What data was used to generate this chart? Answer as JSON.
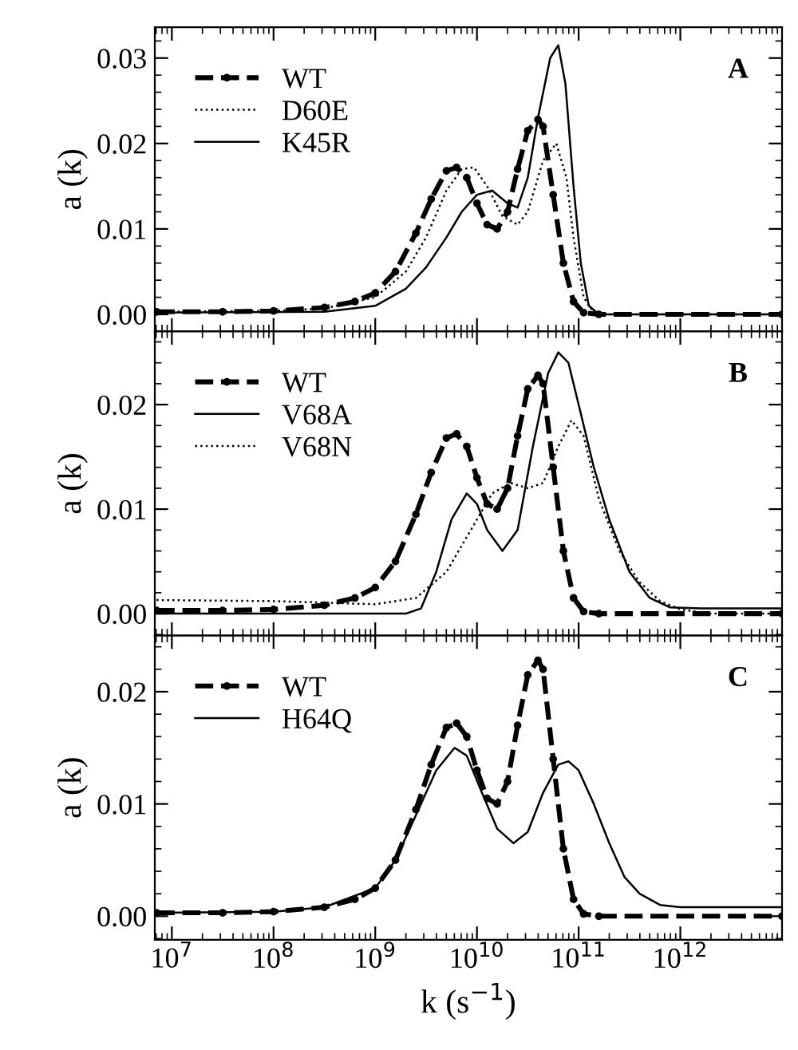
{
  "chart_data": [
    {
      "type": "line",
      "ylabel": "a (k)",
      "annotations": [
        "A"
      ],
      "legend": "top left",
      "xlim": [
        6800000.0,
        10000000000000.0
      ],
      "ylim": [
        -0.002,
        0.0336
      ],
      "log": "x",
      "tick_labels": "y",
      "xticks": [
        {
          "value": 10000000.0,
          "label": null
        },
        {
          "value": 100000000.0,
          "label": null
        },
        {
          "value": 1000000000.0,
          "label": null
        },
        {
          "value": 10000000000.0,
          "label": null
        },
        {
          "value": 100000000000.0,
          "label": null
        },
        {
          "value": 1000000000000.0,
          "label": null
        }
      ],
      "yticks": [
        {
          "value": 0,
          "label": "0.00"
        },
        {
          "value": 0.01,
          "label": "0.01"
        },
        {
          "value": 0.02,
          "label": "0.02"
        },
        {
          "value": 0.03,
          "label": "0.03"
        }
      ],
      "series": [
        {
          "name": "WT",
          "color": "#000000",
          "line_style": "dashed",
          "marker": "circle",
          "x": [
            7080000.0,
            31600000.0,
            100000000.0,
            316000000.0,
            631000000.0,
            1000000000.0,
            1580000000.0,
            2510000000.0,
            3550000000.0,
            5010000000.0,
            6310000000.0,
            7940000000.0,
            10000000000.0,
            12600000000.0,
            15800000000.0,
            20000000000.0,
            25100000000.0,
            31600000000.0,
            39800000000.0,
            44700000000.0,
            56200000000.0,
            70800000000.0,
            89100000000.0,
            112000000000.0,
            158000000000.0,
            10000000000000.0
          ],
          "values": [
            0.0003,
            0.0003,
            0.0004,
            0.0008,
            0.0015,
            0.0025,
            0.005,
            0.0095,
            0.0135,
            0.0168,
            0.0172,
            0.016,
            0.013,
            0.0105,
            0.01,
            0.012,
            0.017,
            0.0215,
            0.0228,
            0.022,
            0.014,
            0.006,
            0.0015,
            0.0002,
            0.0,
            0.0
          ]
        },
        {
          "name": "D60E",
          "color": "#000000",
          "line_style": "dotted",
          "marker": "none",
          "x": [
            7080000.0,
            100000000.0,
            316000000.0,
            1000000000.0,
            2000000000.0,
            3160000000.0,
            5010000000.0,
            7080000000.0,
            9330000000.0,
            12600000000.0,
            17800000000.0,
            25100000000.0,
            31600000000.0,
            44700000000.0,
            60300000000.0,
            75900000000.0,
            89100000000.0,
            112000000000.0,
            141000000000.0,
            200000000000.0,
            10000000000000.0
          ],
          "values": [
            0.0003,
            0.0004,
            0.0007,
            0.002,
            0.005,
            0.009,
            0.0145,
            0.017,
            0.0172,
            0.015,
            0.0115,
            0.0105,
            0.012,
            0.018,
            0.02,
            0.016,
            0.009,
            0.002,
            0.0002,
            0.0,
            0.0
          ]
        },
        {
          "name": "K45R",
          "color": "#000000",
          "line_style": "solid",
          "marker": "none",
          "x": [
            7080000.0,
            316000000.0,
            1000000000.0,
            2000000000.0,
            3160000000.0,
            5010000000.0,
            7080000000.0,
            10000000000.0,
            14100000000.0,
            20000000000.0,
            25100000000.0,
            31600000000.0,
            39800000000.0,
            52500000000.0,
            63100000000.0,
            74100000000.0,
            89100000000.0,
            105000000000.0,
            126000000000.0,
            158000000000.0,
            10000000000000.0
          ],
          "values": [
            0.0002,
            0.0003,
            0.001,
            0.003,
            0.0055,
            0.009,
            0.012,
            0.014,
            0.0145,
            0.013,
            0.0125,
            0.016,
            0.023,
            0.03,
            0.0315,
            0.027,
            0.015,
            0.006,
            0.001,
            0.0,
            0.0
          ]
        }
      ]
    },
    {
      "type": "line",
      "ylabel": "a (k)",
      "annotations": [
        "B"
      ],
      "legend": "top left",
      "xlim": [
        6800000.0,
        10000000000000.0
      ],
      "ylim": [
        -0.0021,
        0.027
      ],
      "log": "x",
      "tick_labels": "y",
      "xticks": [
        {
          "value": 10000000.0,
          "label": null
        },
        {
          "value": 100000000.0,
          "label": null
        },
        {
          "value": 1000000000.0,
          "label": null
        },
        {
          "value": 10000000000.0,
          "label": null
        },
        {
          "value": 100000000000.0,
          "label": null
        },
        {
          "value": 1000000000000.0,
          "label": null
        }
      ],
      "yticks": [
        {
          "value": 0,
          "label": "0.00"
        },
        {
          "value": 0.01,
          "label": "0.01"
        },
        {
          "value": 0.02,
          "label": "0.02"
        }
      ],
      "series": [
        {
          "name": "WT",
          "color": "#000000",
          "line_style": "dashed",
          "marker": "circle",
          "x": [
            7080000.0,
            31600000.0,
            100000000.0,
            316000000.0,
            631000000.0,
            1000000000.0,
            1580000000.0,
            2510000000.0,
            3550000000.0,
            5010000000.0,
            6310000000.0,
            7940000000.0,
            10000000000.0,
            12600000000.0,
            15800000000.0,
            20000000000.0,
            25100000000.0,
            31600000000.0,
            39800000000.0,
            44700000000.0,
            56200000000.0,
            70800000000.0,
            89100000000.0,
            112000000000.0,
            158000000000.0,
            10000000000000.0
          ],
          "values": [
            0.0003,
            0.0003,
            0.0004,
            0.0008,
            0.0015,
            0.0025,
            0.005,
            0.0095,
            0.0135,
            0.0168,
            0.0172,
            0.016,
            0.013,
            0.0105,
            0.01,
            0.012,
            0.017,
            0.0215,
            0.0228,
            0.022,
            0.014,
            0.006,
            0.0015,
            0.0002,
            0.0,
            0.0
          ]
        },
        {
          "name": "V68A",
          "color": "#000000",
          "line_style": "solid",
          "marker": "none",
          "x": [
            7080000.0,
            2000000000.0,
            2820000000.0,
            3980000000.0,
            5620000000.0,
            7940000000.0,
            10000000000.0,
            12600000000.0,
            17800000000.0,
            25100000000.0,
            35500000000.0,
            50100000000.0,
            63100000000.0,
            79400000000.0,
            100000000000.0,
            141000000000.0,
            200000000000.0,
            316000000000.0,
            501000000000.0,
            794000000000.0,
            1580000000000.0,
            10000000000000.0
          ],
          "values": [
            0.0,
            0.0,
            0.0005,
            0.004,
            0.009,
            0.0115,
            0.0105,
            0.008,
            0.006,
            0.008,
            0.016,
            0.023,
            0.025,
            0.024,
            0.02,
            0.014,
            0.009,
            0.004,
            0.0015,
            0.0006,
            0.0005,
            0.0005
          ]
        },
        {
          "name": "V68N",
          "color": "#000000",
          "line_style": "dotted",
          "marker": "none",
          "x": [
            7080000.0,
            100000000.0,
            1000000000.0,
            2510000000.0,
            5010000000.0,
            7080000000.0,
            10000000000.0,
            14100000000.0,
            21400000000.0,
            31600000000.0,
            44700000000.0,
            63100000000.0,
            85100000000.0,
            112000000000.0,
            158000000000.0,
            251000000000.0,
            398000000000.0,
            631000000000.0,
            1000000000000.0,
            2000000000000.0,
            10000000000000.0
          ],
          "values": [
            0.0013,
            0.0012,
            0.0009,
            0.0015,
            0.004,
            0.0065,
            0.009,
            0.0115,
            0.0125,
            0.012,
            0.0125,
            0.016,
            0.0185,
            0.017,
            0.011,
            0.006,
            0.003,
            0.0012,
            0.0004,
            0.0,
            0.0
          ]
        }
      ]
    },
    {
      "type": "line",
      "ylabel": "a (k)",
      "xlabel": "k (s$^{−1}$)",
      "annotations": [
        "C"
      ],
      "legend": "top left",
      "xlim": [
        6800000.0,
        10000000000000.0
      ],
      "ylim": [
        -0.0021,
        0.025
      ],
      "log": "x",
      "xticks": [
        {
          "value": 10000000.0,
          "label": "10$^{7}$"
        },
        {
          "value": 100000000.0,
          "label": "10$^{8}$"
        },
        {
          "value": 1000000000.0,
          "label": "10$^{9}$"
        },
        {
          "value": 10000000000.0,
          "label": "10$^{10}$"
        },
        {
          "value": 100000000000.0,
          "label": "10$^{11}$"
        },
        {
          "value": 1000000000000.0,
          "label": "10$^{12}$"
        }
      ],
      "yticks": [
        {
          "value": 0,
          "label": "0.00"
        },
        {
          "value": 0.01,
          "label": "0.01"
        },
        {
          "value": 0.02,
          "label": "0.02"
        }
      ],
      "series": [
        {
          "name": "WT",
          "color": "#000000",
          "line_style": "dashed",
          "marker": "circle",
          "x": [
            7080000.0,
            31600000.0,
            100000000.0,
            316000000.0,
            631000000.0,
            1000000000.0,
            1580000000.0,
            2510000000.0,
            3550000000.0,
            5010000000.0,
            6310000000.0,
            7940000000.0,
            10000000000.0,
            12600000000.0,
            15800000000.0,
            20000000000.0,
            25100000000.0,
            31600000000.0,
            39800000000.0,
            44700000000.0,
            56200000000.0,
            70800000000.0,
            89100000000.0,
            112000000000.0,
            158000000000.0,
            10000000000000.0
          ],
          "values": [
            0.0003,
            0.0003,
            0.0004,
            0.0008,
            0.0015,
            0.0025,
            0.005,
            0.0095,
            0.0135,
            0.0168,
            0.0172,
            0.016,
            0.013,
            0.0105,
            0.01,
            0.012,
            0.017,
            0.0215,
            0.0228,
            0.022,
            0.014,
            0.006,
            0.0015,
            0.0002,
            0.0,
            0.0
          ]
        },
        {
          "name": "H64Q",
          "color": "#000000",
          "line_style": "solid",
          "marker": "none",
          "x": [
            7080000.0,
            100000000.0,
            316000000.0,
            1000000000.0,
            1580000000.0,
            2510000000.0,
            3980000000.0,
            6030000000.0,
            7940000000.0,
            11200000000.0,
            15800000000.0,
            22900000000.0,
            31600000000.0,
            44700000000.0,
            63100000000.0,
            79400000000.0,
            100000000000.0,
            141000000000.0,
            200000000000.0,
            282000000000.0,
            398000000000.0,
            631000000000.0,
            1000000000000.0,
            10000000000000.0
          ],
          "values": [
            0.0003,
            0.0004,
            0.0008,
            0.0025,
            0.005,
            0.009,
            0.013,
            0.015,
            0.0143,
            0.011,
            0.0078,
            0.0065,
            0.0075,
            0.011,
            0.0135,
            0.0138,
            0.013,
            0.01,
            0.0065,
            0.0035,
            0.002,
            0.001,
            0.0008,
            0.0008
          ]
        }
      ]
    }
  ]
}
